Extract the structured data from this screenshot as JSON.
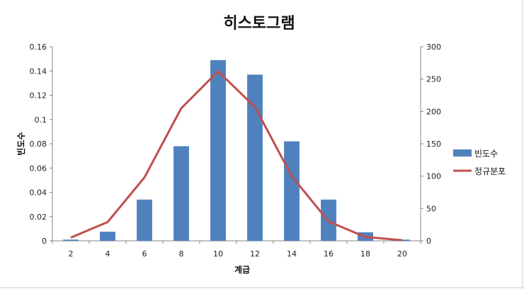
{
  "chart_data": {
    "type": "bar",
    "title": "히스토그램",
    "xlabel": "계급",
    "ylabel": "빈도수",
    "categories": [
      "2",
      "4",
      "6",
      "8",
      "10",
      "12",
      "14",
      "16",
      "18",
      "20"
    ],
    "ylim": [
      0,
      0.16
    ],
    "y_ticks": [
      "0",
      "0.02",
      "0.04",
      "0.06",
      "0.08",
      "0.1",
      "0.12",
      "0.14",
      "0.16"
    ],
    "y2lim": [
      0,
      300
    ],
    "y2_ticks": [
      "0",
      "50",
      "100",
      "150",
      "200",
      "250",
      "300"
    ],
    "series": [
      {
        "name": "빈도수",
        "type": "bar",
        "axis": "left",
        "color": "#4F81BD",
        "values": [
          0.001,
          0.0075,
          0.034,
          0.078,
          0.149,
          0.137,
          0.082,
          0.034,
          0.007,
          0.001
        ]
      },
      {
        "name": "정규분포",
        "type": "line",
        "axis": "right",
        "color": "#C0504D",
        "values": [
          5,
          29,
          98,
          205,
          262,
          207,
          100,
          30,
          6,
          1
        ]
      }
    ],
    "legend_position": "right",
    "grid": false
  }
}
